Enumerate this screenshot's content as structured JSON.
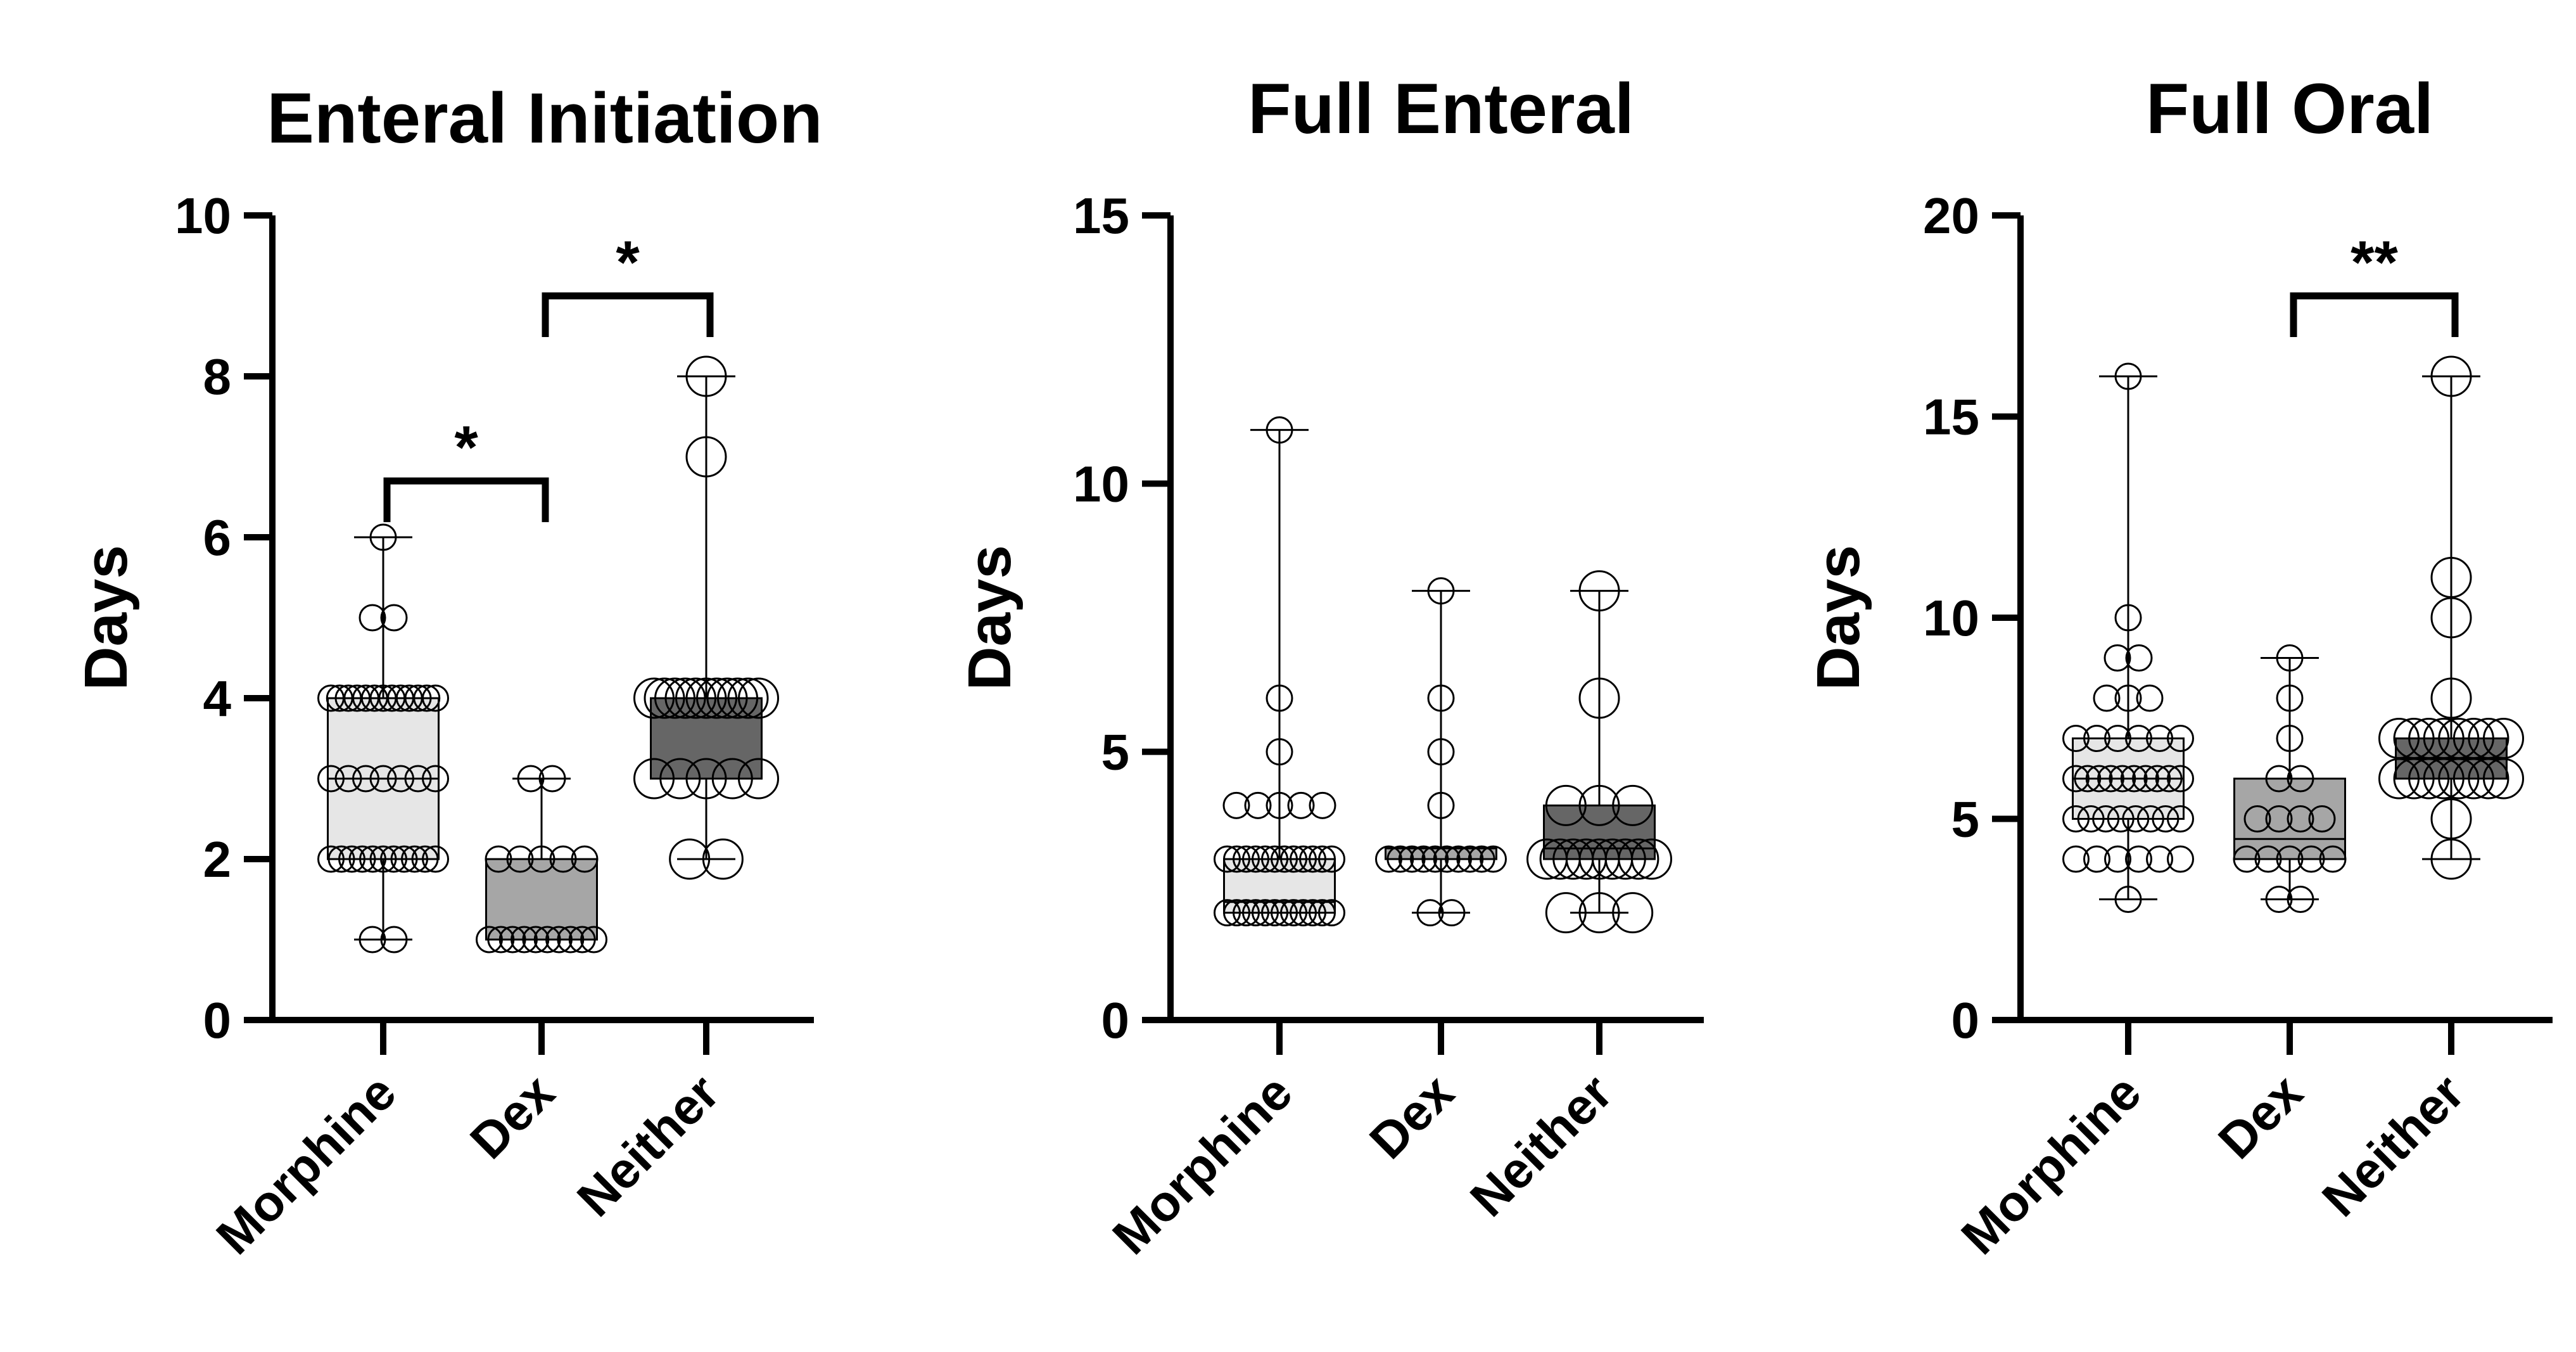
{
  "chart_data": [
    {
      "type": "boxplot",
      "title": "Enteral Initiation",
      "ylabel": "Days",
      "ylim": [
        0,
        10
      ],
      "yticks": [
        0,
        2,
        4,
        6,
        8,
        10
      ],
      "categories": [
        "Morphine",
        "Dex",
        "Neither"
      ],
      "fills": [
        "#e6e6e6",
        "#a6a6a6",
        "#666666"
      ],
      "boxes": [
        {
          "min": 1,
          "q1": 2,
          "median": 3,
          "q3": 4,
          "max": 6
        },
        {
          "min": 1,
          "q1": 1,
          "median": 1,
          "q3": 2,
          "max": 3
        },
        {
          "min": 2,
          "q1": 3,
          "median": 4,
          "q3": 4,
          "max": 8
        }
      ],
      "points": [
        [
          1,
          1,
          2,
          2,
          2,
          2,
          2,
          2,
          2,
          2,
          2,
          2,
          2,
          3,
          3,
          3,
          3,
          3,
          3,
          3,
          4,
          4,
          4,
          4,
          4,
          4,
          4,
          4,
          4,
          4,
          4,
          4,
          4,
          5,
          5,
          6
        ],
        [
          1,
          1,
          1,
          1,
          1,
          1,
          1,
          1,
          1,
          1,
          2,
          2,
          2,
          2,
          2,
          3,
          3
        ],
        [
          2,
          2,
          3,
          3,
          3,
          3,
          3,
          4,
          4,
          4,
          4,
          4,
          4,
          4,
          4,
          4,
          4,
          4,
          7,
          8
        ]
      ],
      "significance": [
        {
          "from": 0,
          "to": 1,
          "label": "*",
          "level": 6.7
        },
        {
          "from": 1,
          "to": 2,
          "label": "*",
          "level": 9.0
        }
      ]
    },
    {
      "type": "boxplot",
      "title": "Full Enteral",
      "ylabel": "Days",
      "ylim": [
        0,
        15
      ],
      "yticks": [
        0,
        5,
        10,
        15
      ],
      "categories": [
        "Morphine",
        "Dex",
        "Neither"
      ],
      "fills": [
        "#e6e6e6",
        "#a6a6a6",
        "#666666"
      ],
      "boxes": [
        {
          "min": 2,
          "q1": 2,
          "median": 2.2,
          "q3": 3,
          "max": 11
        },
        {
          "min": 2,
          "q1": 3,
          "median": 3,
          "q3": 3.2,
          "max": 8
        },
        {
          "min": 2,
          "q1": 3,
          "median": 3.2,
          "q3": 4,
          "max": 8
        }
      ],
      "points": [
        [
          2,
          2,
          2,
          2,
          2,
          2,
          2,
          2,
          2,
          2,
          2,
          2,
          3,
          3,
          3,
          3,
          3,
          3,
          3,
          3,
          3,
          3,
          3,
          3,
          4,
          4,
          4,
          4,
          4,
          5,
          6,
          11
        ],
        [
          2,
          2,
          3,
          3,
          3,
          3,
          3,
          3,
          3,
          3,
          3,
          3,
          4,
          5,
          6,
          8
        ],
        [
          2,
          2,
          2,
          3,
          3,
          3,
          3,
          3,
          3,
          3,
          3,
          3,
          4,
          4,
          4,
          6,
          8
        ]
      ],
      "significance": []
    },
    {
      "type": "boxplot",
      "title": "Full Oral",
      "ylabel": "Days",
      "ylim": [
        0,
        20
      ],
      "yticks": [
        0,
        5,
        10,
        15,
        20
      ],
      "categories": [
        "Morphine",
        "Dex",
        "Neither"
      ],
      "fills": [
        "#e6e6e6",
        "#a6a6a6",
        "#666666"
      ],
      "boxes": [
        {
          "min": 3,
          "q1": 5,
          "median": 6,
          "q3": 7,
          "max": 16
        },
        {
          "min": 3,
          "q1": 4,
          "median": 4.5,
          "q3": 6,
          "max": 9
        },
        {
          "min": 4,
          "q1": 6,
          "median": 6.5,
          "q3": 7,
          "max": 16
        }
      ],
      "points": [
        [
          3,
          4,
          4,
          4,
          4,
          4,
          4,
          5,
          5,
          5,
          5,
          5,
          5,
          5,
          5,
          6,
          6,
          6,
          6,
          6,
          6,
          6,
          6,
          6,
          6,
          7,
          7,
          7,
          7,
          7,
          7,
          8,
          8,
          8,
          9,
          9,
          10,
          16
        ],
        [
          3,
          3,
          4,
          4,
          4,
          4,
          4,
          5,
          5,
          5,
          5,
          6,
          6,
          7,
          8,
          9
        ],
        [
          4,
          5,
          6,
          6,
          6,
          6,
          6,
          6,
          6,
          6,
          7,
          7,
          7,
          7,
          7,
          7,
          7,
          7,
          8,
          10,
          11,
          16
        ]
      ],
      "significance": [
        {
          "from": 1,
          "to": 2,
          "label": "**",
          "level": 18.0
        }
      ]
    }
  ]
}
